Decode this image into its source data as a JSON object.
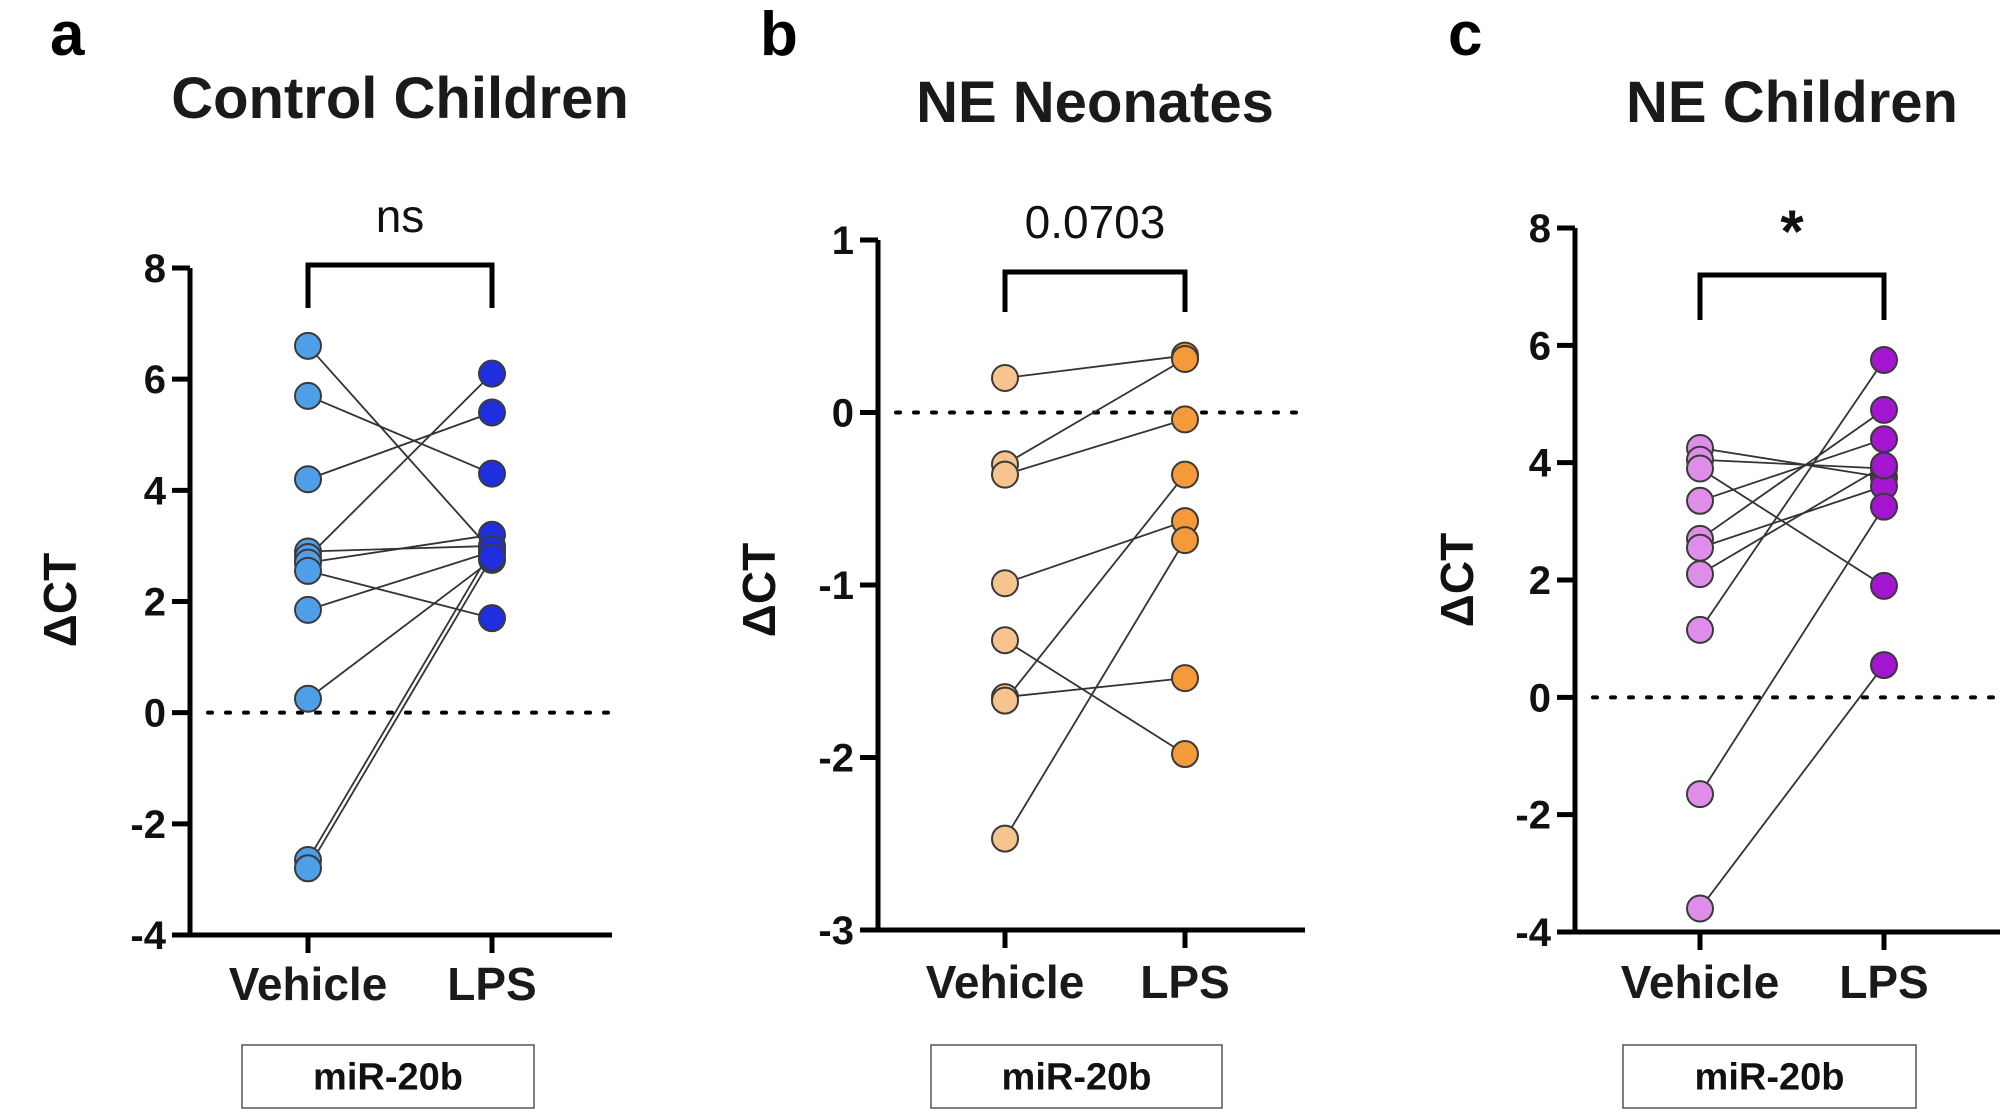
{
  "chart_data": [
    {
      "type": "scatter",
      "panel_letter": "a",
      "title": "Control Children",
      "ylabel": "ΔCT",
      "ylim": [
        -4,
        8
      ],
      "yticks": [
        -4,
        -2,
        0,
        2,
        4,
        6,
        8
      ],
      "ytick_labels": [
        "-4",
        "-2",
        "0",
        "2",
        "4",
        "6",
        "8"
      ],
      "categories": [
        "Vehicle",
        "LPS"
      ],
      "reference_line": 0,
      "significance": "ns",
      "box_label": "miR-20b",
      "colors": {
        "Vehicle": "#4f9fe8",
        "LPS": "#1f2fe0"
      },
      "pairs": [
        [
          6.6,
          2.9
        ],
        [
          5.7,
          4.3
        ],
        [
          4.2,
          5.4
        ],
        [
          2.9,
          3.0
        ],
        [
          2.8,
          6.1
        ],
        [
          2.7,
          3.2
        ],
        [
          2.55,
          1.7
        ],
        [
          1.85,
          2.9
        ],
        [
          0.25,
          2.75
        ],
        [
          -2.65,
          2.95
        ],
        [
          -2.8,
          2.8
        ]
      ]
    },
    {
      "type": "scatter",
      "panel_letter": "b",
      "title": "NE Neonates",
      "ylabel": "ΔCT",
      "ylim": [
        -3,
        1
      ],
      "yticks": [
        -3,
        -2,
        -1,
        0,
        1
      ],
      "ytick_labels": [
        "-3",
        "-2",
        "-1",
        "0",
        "1"
      ],
      "categories": [
        "Vehicle",
        "LPS"
      ],
      "reference_line": 0,
      "significance": "0.0703",
      "box_label": "miR-20b",
      "colors": {
        "Vehicle": "#f8c48e",
        "LPS": "#f59a3a"
      },
      "pairs": [
        [
          0.2,
          0.33
        ],
        [
          -0.3,
          0.31
        ],
        [
          -0.36,
          -0.04
        ],
        [
          -0.99,
          -0.63
        ],
        [
          -1.32,
          -1.98
        ],
        [
          -1.65,
          -1.54
        ],
        [
          -1.67,
          -0.36
        ],
        [
          -2.47,
          -0.74
        ]
      ]
    },
    {
      "type": "scatter",
      "panel_letter": "c",
      "title": "NE Children",
      "ylabel": "ΔCT",
      "ylim": [
        -4,
        8
      ],
      "yticks": [
        -4,
        -2,
        0,
        2,
        4,
        6,
        8
      ],
      "ytick_labels": [
        "-4",
        "-2",
        "0",
        "2",
        "4",
        "6",
        "8"
      ],
      "categories": [
        "Vehicle",
        "LPS"
      ],
      "reference_line": 0,
      "significance": "*",
      "box_label": "miR-20b",
      "colors": {
        "Vehicle": "#de8ee8",
        "LPS": "#a315cf"
      },
      "pairs": [
        [
          4.25,
          3.75
        ],
        [
          4.05,
          3.9
        ],
        [
          3.9,
          1.9
        ],
        [
          3.35,
          4.4
        ],
        [
          2.7,
          4.9
        ],
        [
          2.55,
          3.6
        ],
        [
          2.1,
          3.95
        ],
        [
          1.15,
          5.75
        ],
        [
          -1.65,
          3.25
        ],
        [
          -3.6,
          0.55
        ]
      ]
    }
  ]
}
